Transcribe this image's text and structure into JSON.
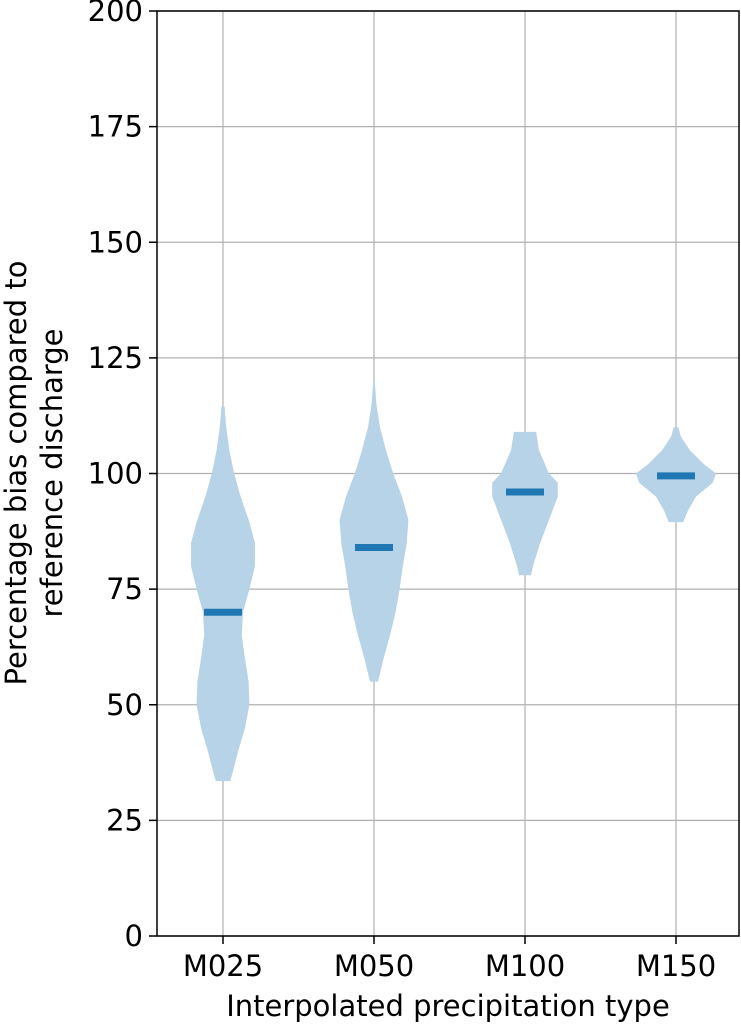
{
  "chart_data": {
    "type": "violin",
    "xlabel": "Interpolated precipitation type",
    "ylabel_lines": [
      "Percentage bias compared to",
      "reference discharge"
    ],
    "ylim": [
      0,
      200
    ],
    "yticks": [
      0,
      25,
      50,
      75,
      100,
      125,
      150,
      175,
      200
    ],
    "grid": true,
    "categories": [
      "M025",
      "M050",
      "M100",
      "M150"
    ],
    "medians": [
      70,
      84,
      96,
      99.5
    ],
    "mins": [
      33.5,
      55,
      78,
      89.5
    ],
    "maxs": [
      114.5,
      120,
      109,
      110
    ],
    "densities": [
      [
        [
          33.5,
          0.18
        ],
        [
          36,
          0.26
        ],
        [
          40,
          0.38
        ],
        [
          45,
          0.55
        ],
        [
          50,
          0.66
        ],
        [
          55,
          0.64
        ],
        [
          60,
          0.55
        ],
        [
          65,
          0.47
        ],
        [
          70,
          0.5
        ],
        [
          75,
          0.66
        ],
        [
          80,
          0.8
        ],
        [
          85,
          0.8
        ],
        [
          90,
          0.64
        ],
        [
          95,
          0.44
        ],
        [
          100,
          0.28
        ],
        [
          105,
          0.16
        ],
        [
          110,
          0.08
        ],
        [
          114.5,
          0.04
        ]
      ],
      [
        [
          55,
          0.1
        ],
        [
          60,
          0.24
        ],
        [
          65,
          0.4
        ],
        [
          70,
          0.54
        ],
        [
          75,
          0.64
        ],
        [
          80,
          0.72
        ],
        [
          85,
          0.82
        ],
        [
          90,
          0.86
        ],
        [
          95,
          0.7
        ],
        [
          100,
          0.48
        ],
        [
          105,
          0.3
        ],
        [
          110,
          0.15
        ],
        [
          115,
          0.06
        ],
        [
          120,
          0.02
        ]
      ],
      [
        [
          78,
          0.15
        ],
        [
          80,
          0.2
        ],
        [
          85,
          0.38
        ],
        [
          90,
          0.6
        ],
        [
          95,
          0.82
        ],
        [
          98,
          0.82
        ],
        [
          100,
          0.6
        ],
        [
          105,
          0.35
        ],
        [
          109,
          0.28
        ]
      ],
      [
        [
          89.5,
          0.18
        ],
        [
          92,
          0.3
        ],
        [
          95,
          0.5
        ],
        [
          98,
          0.92
        ],
        [
          100,
          1.0
        ],
        [
          102,
          0.7
        ],
        [
          105,
          0.35
        ],
        [
          108,
          0.12
        ],
        [
          110,
          0.06
        ]
      ]
    ],
    "colors": {
      "violin_fill": "#b7d3e8",
      "median": "#1f77b4",
      "grid": "#b0b0b0"
    }
  }
}
